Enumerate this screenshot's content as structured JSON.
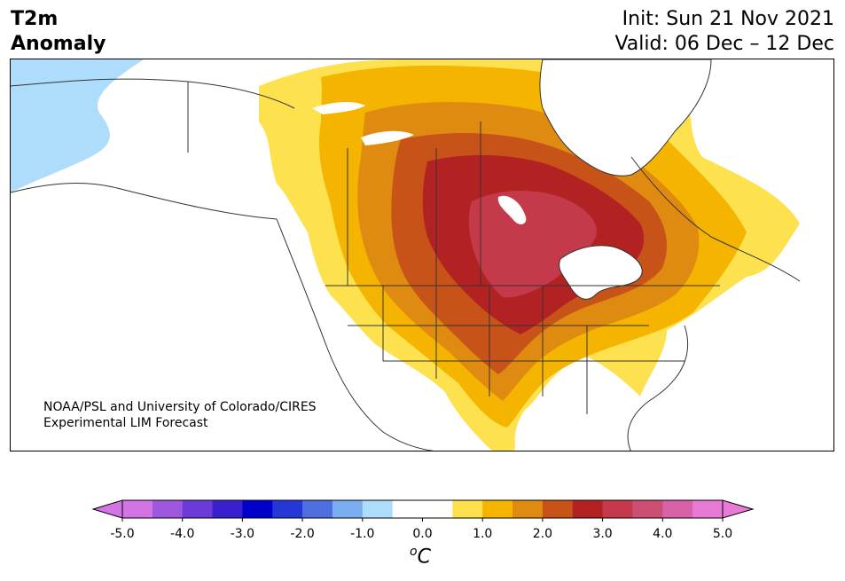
{
  "title": {
    "left_line1": "T2m",
    "left_line2": "Anomaly",
    "init": "Init: Sun 21 Nov 2021",
    "valid": "Valid: 06 Dec – 12 Dec"
  },
  "credit": {
    "line1": "NOAA/PSL and University of Colorado/CIRES",
    "line2": "Experimental LIM Forecast"
  },
  "colorbar": {
    "unit_base": "C",
    "unit_sup": "o",
    "tick_labels": [
      "-5.0",
      "-4.0",
      "-3.0",
      "-2.0",
      "-1.0",
      "0.0",
      "1.0",
      "2.0",
      "3.0",
      "4.0",
      "5.0"
    ],
    "colors": [
      "#d473e6",
      "#9e58df",
      "#6b3ad8",
      "#3920cf",
      "#0000cc",
      "#2538d6",
      "#4f6fe0",
      "#7aaef0",
      "#aeddfc",
      "#ffffff",
      "#ffffff",
      "#fde14e",
      "#f4b400",
      "#df8a10",
      "#c75319",
      "#b22222",
      "#c43a4a",
      "#cc4e73",
      "#d961a8",
      "#e87ad6"
    ],
    "over_color": "#e87ad6",
    "under_color": "#d473e6"
  },
  "map": {
    "region": "North America",
    "fill_colors": {
      "cold_1": "#aeddfc",
      "warm_0_5": "#fde14e",
      "warm_1_0": "#f4b400",
      "warm_1_5": "#df8a10",
      "warm_2_0": "#c75319",
      "warm_2_5": "#b22222",
      "warm_3_0": "#c43a4a"
    }
  }
}
